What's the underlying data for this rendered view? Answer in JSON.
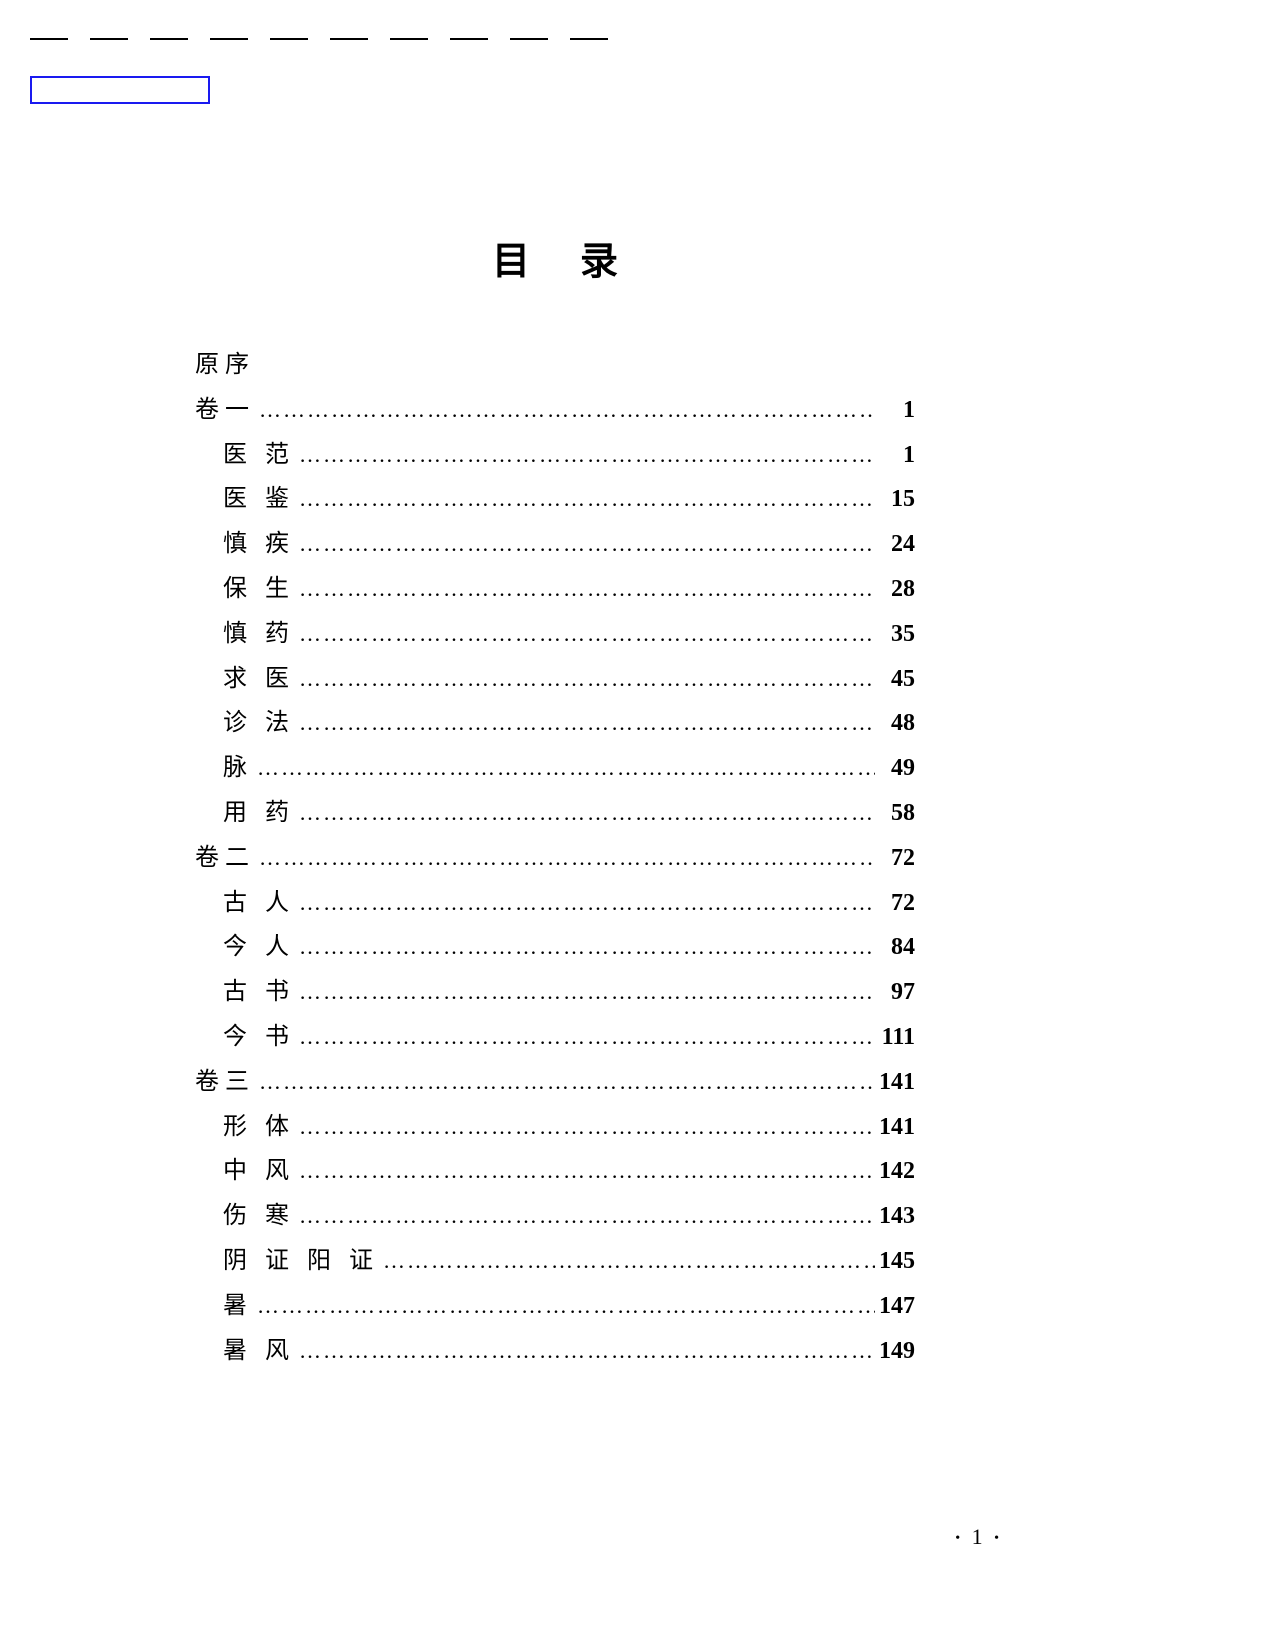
{
  "title": "目录",
  "preface_label": "原序",
  "dots": "…………………………………………………………………………",
  "page_footer": {
    "left_bullet": "•",
    "num": "1",
    "right_bullet": "•"
  },
  "dash_count": 10,
  "colors": {
    "text": "#000000",
    "background": "#ffffff",
    "box_border": "#1a1af0"
  },
  "entries": [
    {
      "level": 1,
      "label": "卷一",
      "page": "1"
    },
    {
      "level": 2,
      "label": "医 范",
      "page": "1"
    },
    {
      "level": 2,
      "label": "医 鉴",
      "page": "15"
    },
    {
      "level": 2,
      "label": "慎 疾",
      "page": "24"
    },
    {
      "level": 2,
      "label": "保 生",
      "page": "28"
    },
    {
      "level": 2,
      "label": "慎 药",
      "page": "35"
    },
    {
      "level": 2,
      "label": "求 医",
      "page": "45"
    },
    {
      "level": 2,
      "label": "诊 法",
      "page": "48"
    },
    {
      "level": 2,
      "label": "脉",
      "page": "49"
    },
    {
      "level": 2,
      "label": "用 药",
      "page": "58"
    },
    {
      "level": 1,
      "label": "卷二",
      "page": "72"
    },
    {
      "level": 2,
      "label": "古 人",
      "page": "72"
    },
    {
      "level": 2,
      "label": "今 人",
      "page": "84"
    },
    {
      "level": 2,
      "label": "古 书",
      "page": "97"
    },
    {
      "level": 2,
      "label": "今 书",
      "page": "111"
    },
    {
      "level": 1,
      "label": "卷三",
      "page": "141"
    },
    {
      "level": 2,
      "label": "形 体",
      "page": "141"
    },
    {
      "level": 2,
      "label": "中 风",
      "page": "142"
    },
    {
      "level": 2,
      "label": "伤 寒",
      "page": "143"
    },
    {
      "level": 2,
      "label": "阴 证 阳 证",
      "page": "145"
    },
    {
      "level": 2,
      "label": "暑",
      "page": "147"
    },
    {
      "level": 2,
      "label": "暑 风",
      "page": "149"
    }
  ]
}
